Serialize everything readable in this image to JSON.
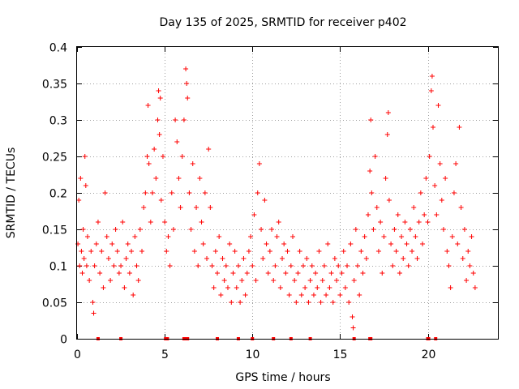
{
  "chart_data": {
    "type": "scatter",
    "title": "Day 135 of 2025, SRMTID for receiver p402",
    "xlabel": "GPS time / hours",
    "ylabel": "SRMTID / TECUs",
    "xlim": [
      0,
      24
    ],
    "ylim": [
      0,
      0.4
    ],
    "x_ticks": [
      0,
      5,
      10,
      15,
      20
    ],
    "x_tick_labels": [
      "0",
      "5",
      "10",
      "15",
      "20"
    ],
    "y_ticks": [
      0,
      0.05,
      0.1,
      0.15,
      0.2,
      0.25,
      0.3,
      0.35,
      0.4
    ],
    "y_tick_labels": [
      "0",
      "0.05",
      "0.1",
      "0.15",
      "0.2",
      "0.25",
      "0.3",
      "0.35",
      "0.4"
    ],
    "grid": true,
    "legend": "none",
    "marker": "+",
    "color": "#ff0000",
    "envelope_note": "Points are sampled with hour-of-day spacing 0.0125 h; y values listed per point below.",
    "series": [
      {
        "name": "SRMTID",
        "points": [
          [
            0.05,
            0.13
          ],
          [
            0.1,
            0.19
          ],
          [
            0.15,
            0.1
          ],
          [
            0.2,
            0.22
          ],
          [
            0.25,
            0.12
          ],
          [
            0.3,
            0.09
          ],
          [
            0.35,
            0.15
          ],
          [
            0.4,
            0.11
          ],
          [
            0.45,
            0.25
          ],
          [
            0.5,
            0.21
          ],
          [
            0.55,
            0.1
          ],
          [
            0.6,
            0.14
          ],
          [
            0.7,
            0.08
          ],
          [
            0.8,
            0.12
          ],
          [
            0.9,
            0.05
          ],
          [
            0.95,
            0.035
          ],
          [
            1.0,
            0.1
          ],
          [
            1.1,
            0.13
          ],
          [
            1.2,
            0.16
          ],
          [
            1.3,
            0.09
          ],
          [
            1.4,
            0.12
          ],
          [
            1.5,
            0.07
          ],
          [
            1.6,
            0.2
          ],
          [
            1.7,
            0.14
          ],
          [
            1.8,
            0.11
          ],
          [
            1.9,
            0.08
          ],
          [
            2.0,
            0.13
          ],
          [
            2.1,
            0.1
          ],
          [
            2.2,
            0.15
          ],
          [
            2.3,
            0.12
          ],
          [
            2.4,
            0.09
          ],
          [
            2.5,
            0.1
          ],
          [
            2.6,
            0.16
          ],
          [
            2.7,
            0.07
          ],
          [
            2.8,
            0.11
          ],
          [
            2.9,
            0.13
          ],
          [
            3.0,
            0.09
          ],
          [
            3.1,
            0.12
          ],
          [
            3.2,
            0.06
          ],
          [
            3.3,
            0.14
          ],
          [
            3.4,
            0.1
          ],
          [
            3.5,
            0.08
          ],
          [
            3.6,
            0.15
          ],
          [
            3.7,
            0.12
          ],
          [
            3.8,
            0.18
          ],
          [
            3.9,
            0.2
          ],
          [
            4.0,
            0.25
          ],
          [
            4.05,
            0.32
          ],
          [
            4.1,
            0.24
          ],
          [
            4.2,
            0.16
          ],
          [
            4.3,
            0.2
          ],
          [
            4.4,
            0.26
          ],
          [
            4.5,
            0.22
          ],
          [
            4.6,
            0.3
          ],
          [
            4.65,
            0.34
          ],
          [
            4.7,
            0.28
          ],
          [
            4.75,
            0.33
          ],
          [
            4.8,
            0.19
          ],
          [
            4.9,
            0.25
          ],
          [
            5.0,
            0.16
          ],
          [
            5.1,
            0.12
          ],
          [
            5.2,
            0.14
          ],
          [
            5.3,
            0.1
          ],
          [
            5.4,
            0.2
          ],
          [
            5.5,
            0.15
          ],
          [
            5.6,
            0.3
          ],
          [
            5.7,
            0.27
          ],
          [
            5.8,
            0.22
          ],
          [
            5.9,
            0.18
          ],
          [
            6.0,
            0.25
          ],
          [
            6.1,
            0.3
          ],
          [
            6.2,
            0.37
          ],
          [
            6.25,
            0.35
          ],
          [
            6.3,
            0.33
          ],
          [
            6.4,
            0.2
          ],
          [
            6.5,
            0.15
          ],
          [
            6.6,
            0.24
          ],
          [
            6.7,
            0.12
          ],
          [
            6.8,
            0.18
          ],
          [
            6.9,
            0.1
          ],
          [
            7.0,
            0.22
          ],
          [
            7.1,
            0.16
          ],
          [
            7.2,
            0.13
          ],
          [
            7.3,
            0.2
          ],
          [
            7.4,
            0.11
          ],
          [
            7.5,
            0.26
          ],
          [
            7.6,
            0.18
          ],
          [
            7.7,
            0.1
          ],
          [
            7.8,
            0.07
          ],
          [
            7.9,
            0.12
          ],
          [
            8.0,
            0.09
          ],
          [
            8.1,
            0.14
          ],
          [
            8.2,
            0.06
          ],
          [
            8.3,
            0.11
          ],
          [
            8.4,
            0.08
          ],
          [
            8.5,
            0.1
          ],
          [
            8.6,
            0.07
          ],
          [
            8.7,
            0.13
          ],
          [
            8.8,
            0.05
          ],
          [
            8.9,
            0.09
          ],
          [
            9.0,
            0.12
          ],
          [
            9.1,
            0.07
          ],
          [
            9.2,
            0.1
          ],
          [
            9.3,
            0.05
          ],
          [
            9.4,
            0.08
          ],
          [
            9.5,
            0.11
          ],
          [
            9.6,
            0.06
          ],
          [
            9.7,
            0.09
          ],
          [
            9.8,
            0.12
          ],
          [
            9.9,
            0.14
          ],
          [
            10.0,
            0.1
          ],
          [
            10.1,
            0.17
          ],
          [
            10.2,
            0.08
          ],
          [
            10.3,
            0.2
          ],
          [
            10.4,
            0.24
          ],
          [
            10.5,
            0.15
          ],
          [
            10.6,
            0.11
          ],
          [
            10.7,
            0.19
          ],
          [
            10.8,
            0.13
          ],
          [
            10.9,
            0.09
          ],
          [
            11.0,
            0.12
          ],
          [
            11.1,
            0.15
          ],
          [
            11.2,
            0.08
          ],
          [
            11.3,
            0.1
          ],
          [
            11.4,
            0.14
          ],
          [
            11.5,
            0.16
          ],
          [
            11.6,
            0.07
          ],
          [
            11.7,
            0.11
          ],
          [
            11.8,
            0.13
          ],
          [
            11.9,
            0.09
          ],
          [
            12.0,
            0.12
          ],
          [
            12.1,
            0.06
          ],
          [
            12.2,
            0.1
          ],
          [
            12.3,
            0.14
          ],
          [
            12.4,
            0.08
          ],
          [
            12.5,
            0.05
          ],
          [
            12.6,
            0.09
          ],
          [
            12.7,
            0.12
          ],
          [
            12.8,
            0.06
          ],
          [
            12.9,
            0.1
          ],
          [
            13.0,
            0.07
          ],
          [
            13.1,
            0.11
          ],
          [
            13.2,
            0.05
          ],
          [
            13.3,
            0.08
          ],
          [
            13.4,
            0.1
          ],
          [
            13.5,
            0.06
          ],
          [
            13.6,
            0.09
          ],
          [
            13.7,
            0.07
          ],
          [
            13.8,
            0.12
          ],
          [
            13.9,
            0.05
          ],
          [
            14.0,
            0.08
          ],
          [
            14.1,
            0.1
          ],
          [
            14.2,
            0.06
          ],
          [
            14.3,
            0.13
          ],
          [
            14.4,
            0.07
          ],
          [
            14.5,
            0.09
          ],
          [
            14.6,
            0.05
          ],
          [
            14.7,
            0.11
          ],
          [
            14.8,
            0.08
          ],
          [
            14.9,
            0.1
          ],
          [
            15.0,
            0.06
          ],
          [
            15.1,
            0.09
          ],
          [
            15.2,
            0.12
          ],
          [
            15.3,
            0.07
          ],
          [
            15.4,
            0.1
          ],
          [
            15.5,
            0.05
          ],
          [
            15.6,
            0.13
          ],
          [
            15.7,
            0.03
          ],
          [
            15.75,
            0.015
          ],
          [
            15.8,
            0.08
          ],
          [
            15.9,
            0.15
          ],
          [
            16.0,
            0.1
          ],
          [
            16.1,
            0.06
          ],
          [
            16.2,
            0.12
          ],
          [
            16.3,
            0.09
          ],
          [
            16.4,
            0.14
          ],
          [
            16.5,
            0.11
          ],
          [
            16.6,
            0.17
          ],
          [
            16.7,
            0.23
          ],
          [
            16.75,
            0.3
          ],
          [
            16.8,
            0.2
          ],
          [
            16.9,
            0.15
          ],
          [
            17.0,
            0.25
          ],
          [
            17.1,
            0.18
          ],
          [
            17.2,
            0.12
          ],
          [
            17.3,
            0.16
          ],
          [
            17.4,
            0.09
          ],
          [
            17.5,
            0.14
          ],
          [
            17.6,
            0.22
          ],
          [
            17.7,
            0.28
          ],
          [
            17.75,
            0.31
          ],
          [
            17.8,
            0.19
          ],
          [
            17.9,
            0.13
          ],
          [
            18.0,
            0.1
          ],
          [
            18.1,
            0.15
          ],
          [
            18.2,
            0.12
          ],
          [
            18.3,
            0.17
          ],
          [
            18.4,
            0.09
          ],
          [
            18.5,
            0.14
          ],
          [
            18.6,
            0.11
          ],
          [
            18.7,
            0.16
          ],
          [
            18.8,
            0.13
          ],
          [
            18.9,
            0.1
          ],
          [
            19.0,
            0.15
          ],
          [
            19.1,
            0.12
          ],
          [
            19.2,
            0.18
          ],
          [
            19.3,
            0.14
          ],
          [
            19.4,
            0.11
          ],
          [
            19.5,
            0.16
          ],
          [
            19.6,
            0.2
          ],
          [
            19.7,
            0.13
          ],
          [
            19.8,
            0.17
          ],
          [
            19.9,
            0.22
          ],
          [
            20.0,
            0.16
          ],
          [
            20.1,
            0.25
          ],
          [
            20.2,
            0.34
          ],
          [
            20.25,
            0.36
          ],
          [
            20.3,
            0.29
          ],
          [
            20.4,
            0.21
          ],
          [
            20.5,
            0.17
          ],
          [
            20.6,
            0.32
          ],
          [
            20.7,
            0.24
          ],
          [
            20.8,
            0.19
          ],
          [
            20.9,
            0.15
          ],
          [
            21.0,
            0.22
          ],
          [
            21.1,
            0.12
          ],
          [
            21.2,
            0.1
          ],
          [
            21.3,
            0.07
          ],
          [
            21.4,
            0.14
          ],
          [
            21.5,
            0.2
          ],
          [
            21.6,
            0.24
          ],
          [
            21.7,
            0.13
          ],
          [
            21.8,
            0.29
          ],
          [
            21.9,
            0.18
          ],
          [
            22.0,
            0.11
          ],
          [
            22.1,
            0.15
          ],
          [
            22.2,
            0.08
          ],
          [
            22.3,
            0.12
          ],
          [
            22.4,
            0.1
          ],
          [
            22.5,
            0.14
          ],
          [
            22.6,
            0.09
          ],
          [
            22.7,
            0.07
          ]
        ]
      }
    ],
    "zero_markers_x": [
      1.2,
      2.5,
      5.05,
      5.15,
      6.1,
      6.2,
      6.3,
      8.0,
      9.2,
      10.0,
      11.2,
      12.2,
      13.3,
      15.8,
      16.7,
      16.75,
      20.0,
      20.05,
      20.45
    ]
  }
}
